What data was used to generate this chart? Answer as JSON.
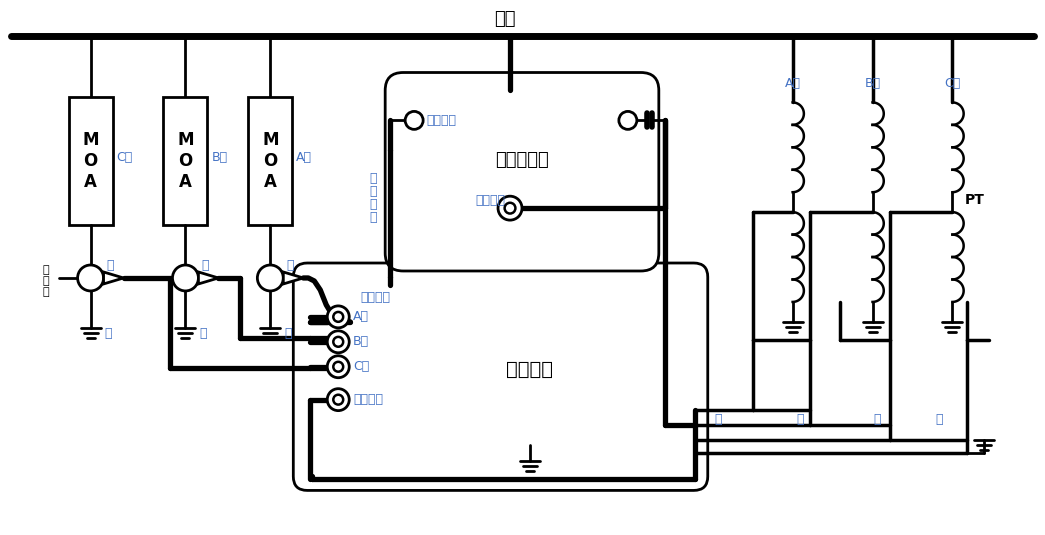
{
  "bg_color": "#ffffff",
  "line_color": "#000000",
  "label_color_blue": "#4472c4",
  "label_color_brown": "#8B4513",
  "title": "母线",
  "moa_phases": [
    "C相",
    "B相",
    "A相"
  ],
  "moa_color_labels": [
    "红",
    "绳",
    "黄"
  ],
  "black_label": "黑",
  "pt_phases": [
    "A相",
    "B相",
    "C相"
  ],
  "pt_output_colors": [
    "黄",
    "绳",
    "红",
    "黑"
  ],
  "main_device_label": "仪器主机",
  "vc_label": "电压采集器",
  "vc_sub_label": "电压输入",
  "comm_label": "通讯接口",
  "comm_cable_line1": "通",
  "comm_cable_line2": "讯",
  "comm_cable_line3": "电",
  "comm_cable_line4": "缆",
  "current_input": "电流输入",
  "port_labels": [
    "A相",
    "B相",
    "C相",
    "参考信号"
  ],
  "counter_line1": "计",
  "counter_line2": "数",
  "counter_line3": "器",
  "pt_label": "PT"
}
